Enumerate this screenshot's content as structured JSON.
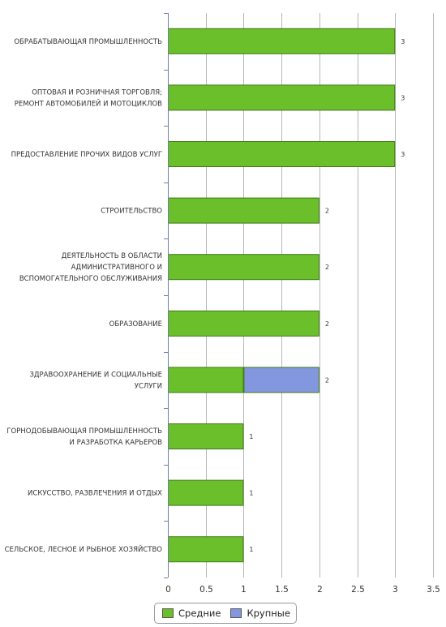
{
  "chart_data": {
    "type": "bar",
    "orientation": "horizontal",
    "stacked": true,
    "categories": [
      [
        "ОБРАБАТЫВАЮЩАЯ ПРОМЫШЛЕННОСТЬ"
      ],
      [
        "ОПТОВАЯ И РОЗНИЧНАЯ ТОРГОВЛЯ;",
        "РЕМОНТ АВТОМОБИЛЕЙ И МОТОЦИКЛОВ"
      ],
      [
        "ПРЕДОСТАВЛЕНИЕ ПРОЧИХ ВИДОВ УСЛУГ"
      ],
      [
        "СТРОИТЕЛЬСТВО"
      ],
      [
        "ДЕЯТЕЛЬНОСТЬ В ОБЛАСТИ",
        "АДМИНИСТРАТИВНОГО И",
        "ВСПОМОГАТЕЛЬНОГО ОБСЛУЖИВАНИЯ"
      ],
      [
        "ОБРАЗОВАНИЕ"
      ],
      [
        "ЗДРАВООХРАНЕНИЕ И СОЦИАЛЬНЫЕ",
        "УСЛУГИ"
      ],
      [
        "ГОРНОДОБЫВАЮЩАЯ ПРОМЫШЛЕННОСТЬ",
        "И РАЗРАБОТКА КАРЬЕРОВ"
      ],
      [
        "ИСКУССТВО, РАЗВЛЕЧЕНИЯ И ОТДЫХ"
      ],
      [
        "СЕЛЬСКОЕ, ЛЕСНОЕ И РЫБНОЕ ХОЗЯЙСТВО"
      ]
    ],
    "series": [
      {
        "name": "Средние",
        "color": "#6bbf2b",
        "values": [
          3,
          3,
          3,
          2,
          2,
          2,
          1,
          1,
          1,
          1
        ]
      },
      {
        "name": "Крупные",
        "color": "#8397de",
        "values": [
          0,
          0,
          0,
          0,
          0,
          0,
          1,
          0,
          0,
          0
        ]
      }
    ],
    "totals": [
      3,
      3,
      3,
      2,
      2,
      2,
      2,
      1,
      1,
      1
    ],
    "xlim": [
      0,
      3.5
    ],
    "xticks": [
      "0",
      "0.5",
      "1",
      "1.5",
      "2",
      "2.5",
      "3",
      "3.5"
    ],
    "xlabel": "",
    "ylabel": "",
    "title": "",
    "grid": true,
    "legend_position": "bottom"
  }
}
